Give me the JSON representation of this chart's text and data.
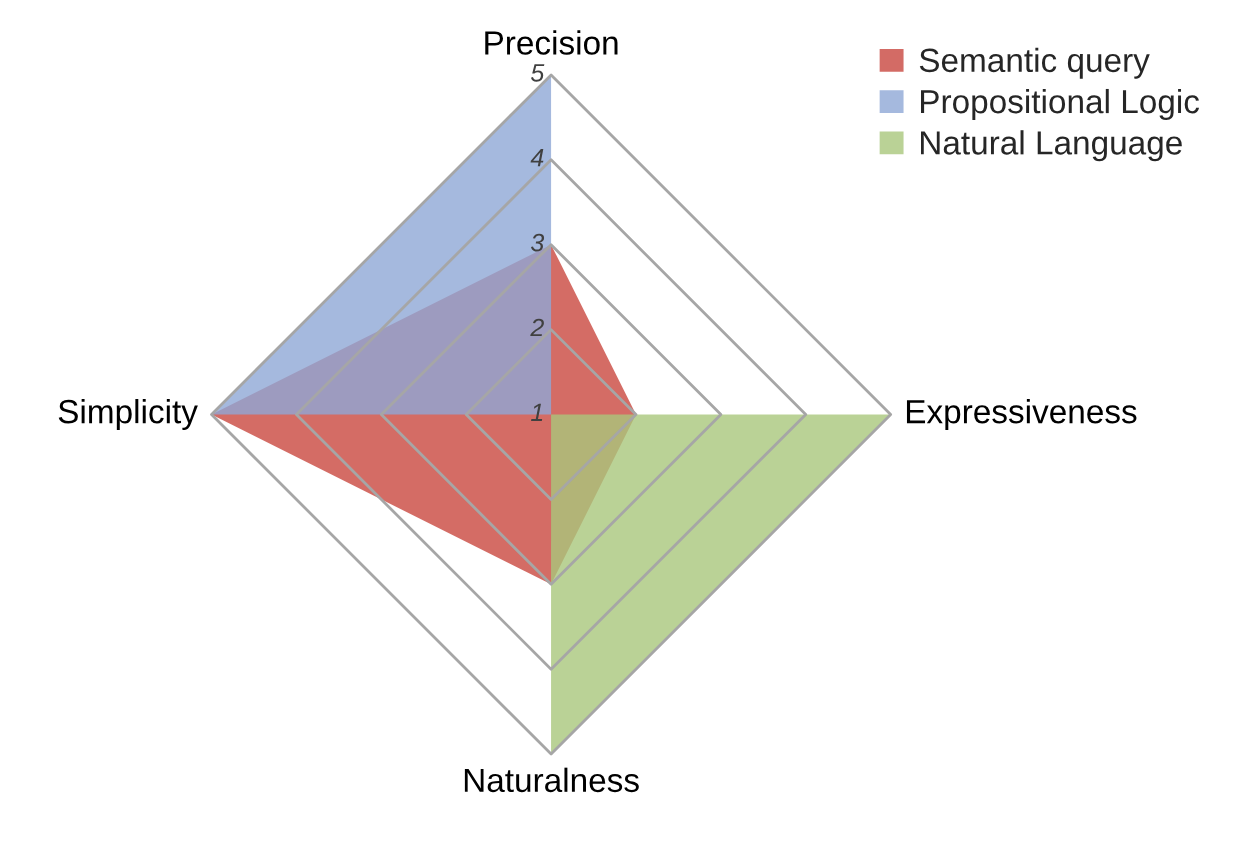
{
  "chart_data": {
    "type": "radar",
    "categories": [
      "Precision",
      "Expressiveness",
      "Naturalness",
      "Simplicity"
    ],
    "series": [
      {
        "name": "Semantic query",
        "color": "#c9473f",
        "values": [
          3,
          2,
          3,
          5
        ]
      },
      {
        "name": "Propositional Logic",
        "color": "#8fa8d6",
        "values": [
          5,
          1,
          1,
          5
        ]
      },
      {
        "name": "Natural Language",
        "color": "#a9c77c",
        "values": [
          1,
          5,
          5,
          1
        ]
      }
    ],
    "ylim": [
      1,
      5
    ],
    "yticks": [
      1,
      2,
      3,
      4,
      5
    ],
    "grid": true,
    "legend": "top right"
  }
}
